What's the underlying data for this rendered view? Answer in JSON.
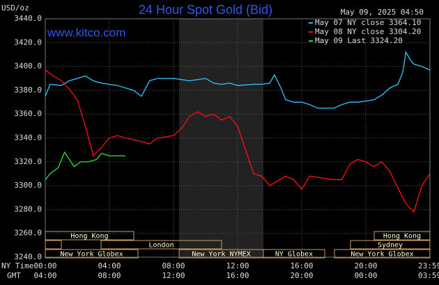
{
  "chart_data": {
    "type": "line",
    "title": "24 Hour Spot Gold (Bid)",
    "unit_label": "USD/oz",
    "site": "www.kitco.com",
    "timestamp": "May 09, 2025 04:50",
    "x_axis_label": "NY Time",
    "x2_axis_label": "GMT",
    "xlim": [
      0,
      24
    ],
    "xticks": [
      {
        "value": 0,
        "label": "00:00"
      },
      {
        "value": 4,
        "label": "04:00"
      },
      {
        "value": 8,
        "label": "08:00"
      },
      {
        "value": 12,
        "label": "12:00"
      },
      {
        "value": 16,
        "label": "16:00"
      },
      {
        "value": 20,
        "label": "20:00"
      },
      {
        "value": 23.98,
        "label": "23:59"
      }
    ],
    "x2tick_labels": [
      "04:00",
      "08:00",
      "12:00",
      "16:00",
      "20:00",
      "00:00",
      "03:59"
    ],
    "ylim": [
      3240,
      3440
    ],
    "yticks": [
      {
        "value": 3240,
        "label": "3240.0"
      },
      {
        "value": 3260,
        "label": "3260.0"
      },
      {
        "value": 3280,
        "label": "3280.0"
      },
      {
        "value": 3300,
        "label": "3300.0"
      },
      {
        "value": 3320,
        "label": "3320.0"
      },
      {
        "value": 3340,
        "label": "3340.0"
      },
      {
        "value": 3360,
        "label": "3360.0"
      },
      {
        "value": 3380,
        "label": "3380.0"
      },
      {
        "value": 3400,
        "label": "3400.0"
      },
      {
        "value": 3420,
        "label": "3420.0"
      },
      {
        "value": 3440,
        "label": "3440.0"
      }
    ],
    "grid": true,
    "legend": "top-right",
    "sessions": [
      "Hong Kong",
      "London",
      "New York Globex",
      "New York NYMEX",
      "NY Globex",
      "Sydney",
      "Hong Kong",
      "New York Globex"
    ],
    "series": [
      {
        "name": "May 07 NY close 3364.10",
        "color": "#33bbee",
        "x": [
          0,
          0.3,
          1,
          1.5,
          2,
          2.5,
          3,
          3.5,
          4,
          4.5,
          5,
          5.5,
          6,
          6.5,
          7,
          8,
          9,
          10,
          10.5,
          11,
          11.5,
          12,
          13,
          13.5,
          14,
          14.3,
          14.7,
          15,
          15.5,
          16,
          16.5,
          17,
          17.5,
          18,
          18.5,
          19,
          19.5,
          20,
          20.5,
          21,
          21.5,
          22,
          22.3,
          22.5,
          22.8,
          23,
          23.5,
          24
        ],
        "values": [
          3375,
          3385,
          3384,
          3388,
          3390,
          3392,
          3388,
          3386,
          3385,
          3384,
          3382,
          3380,
          3375,
          3388,
          3390,
          3390,
          3388,
          3390,
          3386,
          3385,
          3386,
          3384,
          3385,
          3385,
          3386,
          3393,
          3382,
          3372,
          3370,
          3370,
          3368,
          3365,
          3365,
          3365,
          3368,
          3370,
          3370,
          3371,
          3372,
          3376,
          3382,
          3385,
          3395,
          3412,
          3405,
          3402,
          3400,
          3397
        ]
      },
      {
        "name": "May 08 NY close 3304.20",
        "color": "#ee1111",
        "x": [
          0,
          0.5,
          1,
          1.5,
          2,
          2.5,
          3,
          3.5,
          4,
          4.5,
          5,
          6,
          6.5,
          7,
          8,
          8.5,
          9,
          9.5,
          10,
          10.5,
          11,
          11.5,
          12,
          12.5,
          13,
          13.5,
          14,
          15,
          15.5,
          16,
          16.5,
          17.5,
          18,
          18.5,
          19,
          19.5,
          20,
          20.5,
          21,
          21.5,
          22,
          22.5,
          23,
          23.5,
          24
        ],
        "values": [
          3397,
          3392,
          3388,
          3381,
          3372,
          3350,
          3325,
          3332,
          3340,
          3342,
          3340,
          3337,
          3335,
          3340,
          3342,
          3348,
          3358,
          3362,
          3358,
          3360,
          3355,
          3358,
          3350,
          3330,
          3310,
          3308,
          3300,
          3308,
          3305,
          3297,
          3308,
          3306,
          3305,
          3305,
          3318,
          3322,
          3320,
          3316,
          3320,
          3312,
          3298,
          3285,
          3278,
          3300,
          3310
        ]
      },
      {
        "name": "May 09 Last 3324.20",
        "color": "#22dd22",
        "x": [
          0,
          0.3,
          0.8,
          1.2,
          1.5,
          1.8,
          2.2,
          2.7,
          3.2,
          3.5,
          4,
          4.5,
          5
        ],
        "values": [
          3305,
          3310,
          3315,
          3328,
          3322,
          3316,
          3320,
          3320,
          3322,
          3327,
          3325,
          3325,
          3325
        ]
      }
    ]
  }
}
